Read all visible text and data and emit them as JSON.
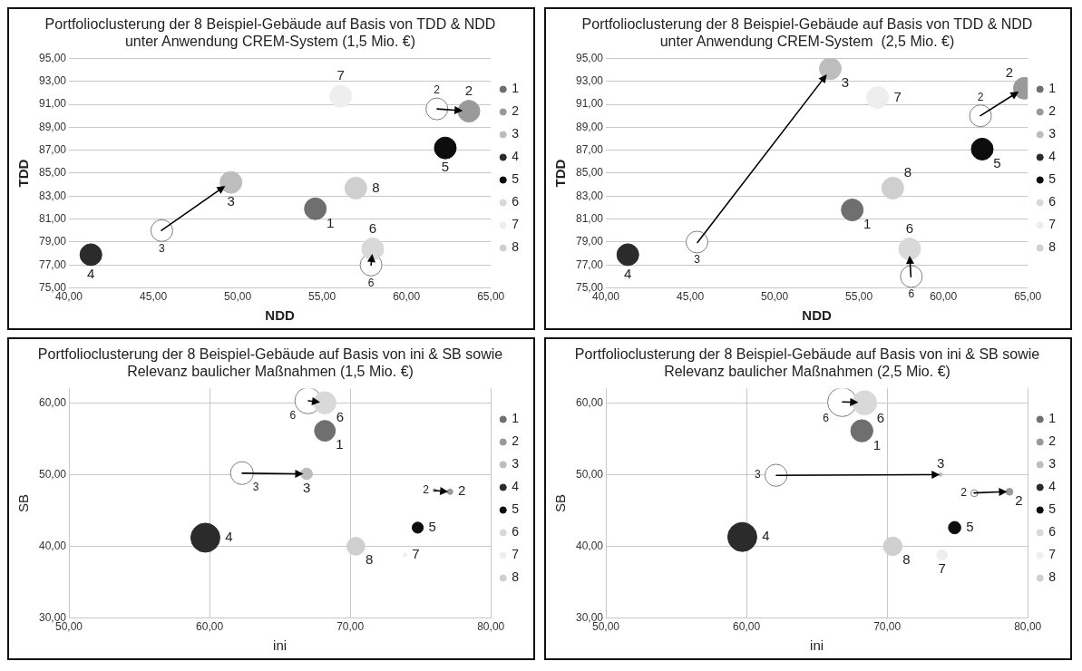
{
  "chart_data": [
    {
      "type": "scatter",
      "title": "Portfolioclusterung der 8 Beispiel-Gebäude auf Basis von TDD & NDD unter Anwendung CREM-System (1,5 Mio. €)",
      "xlabel": "NDD",
      "ylabel": "TDD",
      "xlim": [
        40,
        65
      ],
      "ylim": [
        75,
        95
      ],
      "xticks": [
        {
          "value": 40,
          "label": "40,00"
        },
        {
          "value": 45,
          "label": "45,00"
        },
        {
          "value": 50,
          "label": "50,00"
        },
        {
          "value": 55,
          "label": "55,00"
        },
        {
          "value": 60,
          "label": "60,00"
        },
        {
          "value": 65,
          "label": "65,00"
        }
      ],
      "yticks": [
        {
          "value": 75,
          "label": "75,00"
        },
        {
          "value": 77,
          "label": "77,00"
        },
        {
          "value": 79,
          "label": "79,00"
        },
        {
          "value": 81,
          "label": "81,00"
        },
        {
          "value": 83,
          "label": "83,00"
        },
        {
          "value": 85,
          "label": "85,00"
        },
        {
          "value": 87,
          "label": "87,00"
        },
        {
          "value": 89,
          "label": "89,00"
        },
        {
          "value": 91,
          "label": "91,00"
        },
        {
          "value": 93,
          "label": "93,00"
        },
        {
          "value": 95,
          "label": "95,00"
        }
      ],
      "grid": "y",
      "legend": "right",
      "series": [
        {
          "name": "1",
          "color": "#6f6f6f",
          "x": [
            54.6
          ],
          "values": [
            81.9
          ]
        },
        {
          "name": "2",
          "color": "#9a9a9a",
          "x": [
            63.7
          ],
          "values": [
            90.4
          ]
        },
        {
          "name": "3",
          "color": "#bdbdbd",
          "x": [
            49.6
          ],
          "values": [
            84.2
          ]
        },
        {
          "name": "4",
          "color": "#2b2b2b",
          "x": [
            41.3
          ],
          "values": [
            77.9
          ]
        },
        {
          "name": "5",
          "color": "#0d0d0d",
          "x": [
            62.3
          ],
          "values": [
            87.2
          ]
        },
        {
          "name": "6",
          "color": "#d9d9d9",
          "x": [
            58.0
          ],
          "values": [
            78.4
          ]
        },
        {
          "name": "7",
          "color": "#eeeeee",
          "x": [
            56.1
          ],
          "values": [
            91.7
          ]
        },
        {
          "name": "8",
          "color": "#cfcfcf",
          "x": [
            57.0
          ],
          "values": [
            83.7
          ]
        },
        {
          "color": "#7f7f7f",
          "x": [
            61.8,
            45.5,
            57.9
          ],
          "values": [
            90.6,
            80.0,
            77.0
          ]
        }
      ],
      "annotations": [
        {
          "text": "2",
          "x": 63.7,
          "y": 90.4
        },
        {
          "text": "3",
          "x": 49.6,
          "y": 84.2
        },
        {
          "text": "6",
          "x": 58.0,
          "y": 78.4
        }
      ]
    },
    {
      "type": "scatter",
      "title": "Portfolioclusterung der 8 Beispiel-Gebäude auf Basis von TDD & NDD unter Anwendung CREM-System  (2,5 Mio. €)",
      "xlabel": "NDD",
      "ylabel": "TDD",
      "xlim": [
        40,
        65
      ],
      "ylim": [
        75,
        95
      ],
      "xticks": [
        {
          "value": 40,
          "label": "40,00"
        },
        {
          "value": 45,
          "label": "45,00"
        },
        {
          "value": 50,
          "label": "50,00"
        },
        {
          "value": 55,
          "label": "55,00"
        },
        {
          "value": 60,
          "label": "60,00"
        },
        {
          "value": 65,
          "label": "65,00"
        }
      ],
      "yticks": [
        {
          "value": 75,
          "label": "75,00"
        },
        {
          "value": 77,
          "label": "77,00"
        },
        {
          "value": 79,
          "label": "79,00"
        },
        {
          "value": 81,
          "label": "81,00"
        },
        {
          "value": 83,
          "label": "83,00"
        },
        {
          "value": 85,
          "label": "85,00"
        },
        {
          "value": 87,
          "label": "87,00"
        },
        {
          "value": 89,
          "label": "89,00"
        },
        {
          "value": 91,
          "label": "91,00"
        },
        {
          "value": 93,
          "label": "93,00"
        },
        {
          "value": 95,
          "label": "95,00"
        }
      ],
      "grid": "y",
      "legend": "right",
      "series": [
        {
          "name": "1",
          "color": "#6f6f6f",
          "x": [
            54.6
          ],
          "values": [
            81.8
          ]
        },
        {
          "name": "2",
          "color": "#9a9a9a",
          "x": [
            64.8
          ],
          "values": [
            92.4
          ]
        },
        {
          "name": "3",
          "color": "#bdbdbd",
          "x": [
            53.3
          ],
          "values": [
            94.1
          ]
        },
        {
          "name": "4",
          "color": "#2b2b2b",
          "x": [
            41.3
          ],
          "values": [
            77.9
          ]
        },
        {
          "name": "5",
          "color": "#0d0d0d",
          "x": [
            62.3
          ],
          "values": [
            87.1
          ]
        },
        {
          "name": "6",
          "color": "#d9d9d9",
          "x": [
            58.0
          ],
          "values": [
            78.4
          ]
        },
        {
          "name": "7",
          "color": "#eeeeee",
          "x": [
            56.1
          ],
          "values": [
            91.6
          ]
        },
        {
          "name": "8",
          "color": "#cfcfcf",
          "x": [
            57.0
          ],
          "values": [
            83.7
          ]
        },
        {
          "color": "#7f7f7f",
          "x": [
            62.2,
            45.4,
            58.1
          ],
          "values": [
            90.0,
            79.0,
            76.0
          ]
        }
      ],
      "annotations": [
        {
          "text": "2",
          "x": 64.8,
          "y": 92.4
        },
        {
          "text": "3",
          "x": 53.3,
          "y": 94.1
        },
        {
          "text": "6",
          "x": 58.0,
          "y": 78.4
        }
      ]
    },
    {
      "type": "bubble",
      "title": "Portfolioclusterung der 8 Beispiel-Gebäude auf Basis von ini & SB sowie Relevanz baulicher Maßnahmen (1,5 Mio. €)",
      "xlabel": "ini",
      "ylabel": "SB",
      "xlim": [
        50,
        80
      ],
      "ylim": [
        30,
        62
      ],
      "xticks": [
        {
          "value": 50,
          "label": "50,00"
        },
        {
          "value": 60,
          "label": "60,00"
        },
        {
          "value": 70,
          "label": "70,00"
        },
        {
          "value": 80,
          "label": "80,00"
        }
      ],
      "yticks": [
        {
          "value": 30,
          "label": "30,00"
        },
        {
          "value": 40,
          "label": "40,00"
        },
        {
          "value": 50,
          "label": "50,00"
        },
        {
          "value": 60,
          "label": "60,00"
        }
      ],
      "grid": true,
      "legend": "right",
      "series": [
        {
          "name": "1",
          "color": "#6f6f6f",
          "x": [
            68.2
          ],
          "values": [
            56.1
          ],
          "sizes": [
            0.51
          ]
        },
        {
          "name": "2",
          "color": "#9a9a9a",
          "x": [
            77.1
          ],
          "values": [
            47.6
          ],
          "sizes": [
            0.036
          ]
        },
        {
          "name": "3",
          "color": "#bdbdbd",
          "x": [
            66.9
          ],
          "values": [
            50.1
          ],
          "sizes": [
            0.16
          ]
        },
        {
          "name": "4",
          "color": "#2b2b2b",
          "x": [
            59.7
          ],
          "values": [
            41.2
          ],
          "sizes": [
            1
          ]
        },
        {
          "name": "5",
          "color": "#0d0d0d",
          "x": [
            74.8
          ],
          "values": [
            42.6
          ],
          "sizes": [
            0.145
          ]
        },
        {
          "name": "6",
          "color": "#d9d9d9",
          "x": [
            68.2
          ],
          "values": [
            60.0
          ],
          "sizes": [
            0.58
          ]
        },
        {
          "name": "7",
          "color": "#eeeeee",
          "x": [
            73.9
          ],
          "values": [
            38.8
          ],
          "sizes": [
            0.014
          ]
        },
        {
          "name": "8",
          "color": "#cfcfcf",
          "x": [
            70.4
          ],
          "values": [
            40.0
          ],
          "sizes": [
            0.38
          ]
        },
        {
          "color": "#7f7f7f",
          "x": [
            76.0,
            67.0,
            62.3
          ],
          "values": [
            47.8,
            60.3,
            50.2
          ],
          "sizes": [
            0.01,
            0.82,
            0.62
          ]
        }
      ],
      "annotations": [
        {
          "text": "2",
          "x": 77.1,
          "y": 47.6
        },
        {
          "text": "6",
          "x": 68.2,
          "y": 60.0
        },
        {
          "text": "3",
          "x": 66.9,
          "y": 50.1
        }
      ]
    },
    {
      "type": "bubble",
      "title": "Portfolioclusterung der 8 Beispiel-Gebäude auf Basis von ini & SB sowie Relevanz baulicher Maßnahmen (2,5 Mio. €)",
      "xlabel": "ini",
      "ylabel": "SB",
      "xlim": [
        50,
        80
      ],
      "ylim": [
        30,
        62
      ],
      "xticks": [
        {
          "value": 50,
          "label": "50,00"
        },
        {
          "value": 60,
          "label": "60,00"
        },
        {
          "value": 70,
          "label": "70,00"
        },
        {
          "value": 80,
          "label": "80,00"
        }
      ],
      "yticks": [
        {
          "value": 30,
          "label": "30,00"
        },
        {
          "value": 40,
          "label": "40,00"
        },
        {
          "value": 50,
          "label": "50,00"
        },
        {
          "value": 60,
          "label": "60,00"
        }
      ],
      "grid": true,
      "legend": "right",
      "series": [
        {
          "name": "1",
          "color": "#6f6f6f",
          "x": [
            68.2
          ],
          "values": [
            56.1
          ],
          "sizes": [
            0.58
          ]
        },
        {
          "name": "2",
          "color": "#9a9a9a",
          "x": [
            78.7
          ],
          "values": [
            47.6
          ],
          "sizes": [
            0.057
          ]
        },
        {
          "name": "3",
          "color": "#bdbdbd",
          "x": [
            73.8
          ],
          "values": [
            50.0
          ],
          "sizes": [
            0.014
          ]
        },
        {
          "name": "4",
          "color": "#2b2b2b",
          "x": [
            59.7
          ],
          "values": [
            41.3
          ],
          "sizes": [
            1
          ]
        },
        {
          "name": "5",
          "color": "#0d0d0d",
          "x": [
            74.8
          ],
          "values": [
            42.6
          ],
          "sizes": [
            0.18
          ]
        },
        {
          "name": "6",
          "color": "#d9d9d9",
          "x": [
            68.4
          ],
          "values": [
            60.0
          ],
          "sizes": [
            0.69
          ]
        },
        {
          "name": "7",
          "color": "#eeeeee",
          "x": [
            73.9
          ],
          "values": [
            38.8
          ],
          "sizes": [
            0.13
          ]
        },
        {
          "name": "8",
          "color": "#cfcfcf",
          "x": [
            70.4
          ],
          "values": [
            40.0
          ],
          "sizes": [
            0.41
          ]
        },
        {
          "color": "#7f7f7f",
          "x": [
            76.2,
            66.8,
            62.1
          ],
          "values": [
            47.4,
            60.1,
            49.9
          ],
          "sizes": [
            0.057,
            1,
            0.58
          ]
        }
      ],
      "annotations": [
        {
          "text": "2",
          "x": 78.7,
          "y": 47.6
        },
        {
          "text": "6",
          "x": 68.4,
          "y": 60.0
        },
        {
          "text": "3",
          "x": 73.8,
          "y": 50.0
        }
      ]
    }
  ]
}
